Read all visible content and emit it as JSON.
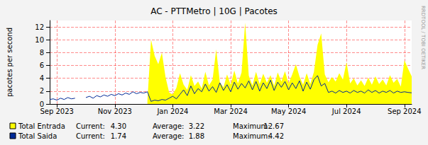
{
  "chart_data": {
    "type": "line",
    "title": "AC - PTTMetro | 10G | Pacotes",
    "y_label": "pacotes per second",
    "watermark": "RRDTOOL / TOBI OETIKER",
    "categories": [
      null,
      null,
      "Sep 2023",
      null,
      null,
      null,
      null,
      null,
      null,
      null,
      null,
      null,
      null,
      null,
      null,
      null,
      null,
      null,
      "Nov 2023",
      null,
      null,
      null,
      null,
      null,
      null,
      null,
      null,
      null,
      null,
      null,
      null,
      null,
      null,
      null,
      "Jan 2024",
      null,
      null,
      null,
      null,
      null,
      null,
      null,
      null,
      null,
      null,
      null,
      null,
      null,
      null,
      null,
      "Mar 2024",
      null,
      null,
      null,
      null,
      null,
      null,
      null,
      null,
      null,
      null,
      null,
      null,
      null,
      null,
      null,
      "May 2024",
      null,
      null,
      null,
      null,
      null,
      null,
      null,
      null,
      null,
      null,
      null,
      null,
      null,
      null,
      null,
      "Jul 2024",
      null,
      null,
      null,
      null,
      null,
      null,
      null,
      null,
      null,
      null,
      null,
      null,
      null,
      null,
      null,
      "Sep 2024",
      null,
      null
    ],
    "ylim": [
      0,
      13
    ],
    "yticks": [
      0,
      2,
      4,
      6,
      8,
      10,
      12
    ],
    "grid": true,
    "legend": "bottom-left",
    "stat_labels": [
      "Current:",
      "Average:",
      "Maximum:"
    ],
    "series": [
      {
        "name": "Total Entrada",
        "type": "area",
        "color": "#ffff00",
        "stats": [
          {
            "value": 4.3,
            "label": "4.30"
          },
          {
            "value": 3.22,
            "label": "3.22"
          },
          {
            "value": 12.67,
            "label": "12.67"
          }
        ],
        "values": [
          null,
          null,
          null,
          null,
          null,
          null,
          null,
          null,
          null,
          null,
          null,
          null,
          null,
          null,
          null,
          null,
          null,
          null,
          null,
          null,
          null,
          null,
          null,
          null,
          null,
          null,
          null,
          0.5,
          10.0,
          7.5,
          6.2,
          8.0,
          4.2,
          1.8,
          1.5,
          2.5,
          4.8,
          3.0,
          2.2,
          4.5,
          2.8,
          3.5,
          2.4,
          5.0,
          2.9,
          3.8,
          8.5,
          3.4,
          2.6,
          4.6,
          3.0,
          5.2,
          3.2,
          4.9,
          12.67,
          4.4,
          2.9,
          5.0,
          3.1,
          4.7,
          3.3,
          4.5,
          2.8,
          4.9,
          3.5,
          5.1,
          3.2,
          4.6,
          6.2,
          4.3,
          3.0,
          4.8,
          3.1,
          5.0,
          9.2,
          11.0,
          4.6,
          3.4,
          4.2,
          3.5,
          4.8,
          3.8,
          6.5,
          3.2,
          4.0,
          2.9,
          3.7,
          2.8,
          4.1,
          3.0,
          4.3,
          3.1,
          3.8,
          2.9,
          4.5,
          3.3,
          3.9,
          2.7,
          6.8,
          5.5,
          4.3
        ]
      },
      {
        "name": "Total Saida",
        "type": "line",
        "color": "#002a97",
        "stats": [
          {
            "value": 1.74,
            "label": "1.74"
          },
          {
            "value": 1.88,
            "label": "1.88"
          },
          {
            "value": 4.42,
            "label": "4.42"
          }
        ],
        "values": [
          0.7,
          0.8,
          0.6,
          0.9,
          0.7,
          1.0,
          0.8,
          0.9,
          null,
          null,
          1.0,
          1.2,
          0.9,
          1.3,
          1.1,
          1.4,
          1.2,
          1.5,
          1.3,
          1.6,
          1.4,
          1.7,
          1.5,
          1.9,
          1.6,
          1.8,
          1.7,
          1.9,
          0.4,
          0.6,
          0.5,
          0.7,
          0.6,
          0.9,
          1.2,
          0.8,
          1.5,
          2.2,
          1.3,
          2.8,
          1.6,
          2.4,
          1.9,
          3.1,
          2.0,
          2.7,
          1.8,
          3.3,
          2.1,
          3.0,
          1.9,
          3.4,
          2.3,
          3.2,
          2.5,
          3.6,
          2.2,
          3.5,
          2.0,
          3.3,
          2.4,
          3.7,
          2.1,
          3.4,
          2.6,
          3.5,
          2.2,
          3.3,
          2.4,
          3.6,
          2.0,
          3.4,
          2.3,
          3.8,
          4.42,
          2.8,
          3.2,
          1.8,
          2.0,
          1.7,
          2.1,
          1.8,
          2.0,
          1.7,
          2.1,
          1.8,
          2.0,
          1.7,
          2.2,
          1.8,
          2.1,
          1.7,
          2.0,
          1.8,
          2.1,
          1.7,
          2.0,
          1.8,
          1.9,
          1.8,
          1.74
        ]
      }
    ]
  }
}
